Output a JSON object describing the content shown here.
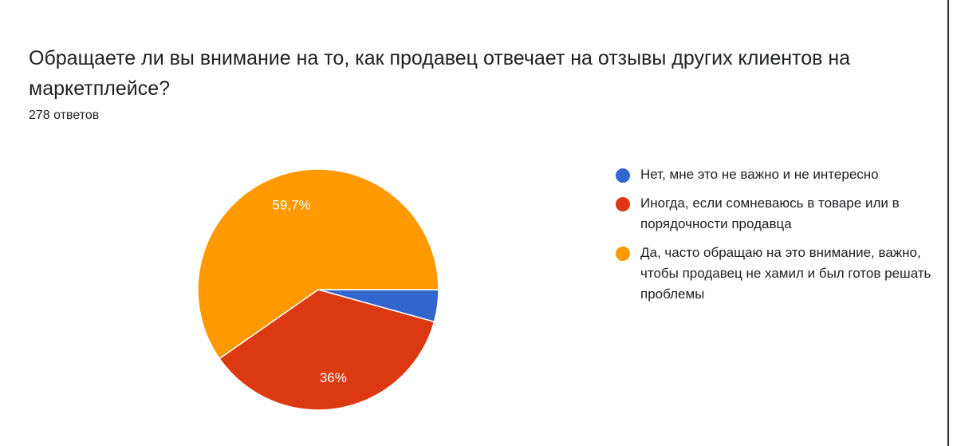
{
  "question": "Обращаете ли вы внимание на то, как продавец отвечает на отзывы других клиентов на маркетплейсе?",
  "response_count": "278 ответов",
  "chart_data": {
    "type": "pie",
    "title": "Обращаете ли вы внимание на то, как продавец отвечает на отзывы других клиентов на маркетплейсе?",
    "legend_position": "right",
    "slices": [
      {
        "label": "Нет, мне это не важно и не интересно",
        "value": 4.3,
        "display_label": "",
        "color": "#3366cc"
      },
      {
        "label": "Иногда, если сомневаюсь в товаре или в порядочности продавца",
        "value": 36,
        "display_label": "36%",
        "color": "#dc3912"
      },
      {
        "label": "Да, часто обращаю на это внимание, важно, чтобы продавец не хамил и был готов решать проблемы",
        "value": 59.7,
        "display_label": "59,7%",
        "color": "#ff9900"
      }
    ]
  }
}
